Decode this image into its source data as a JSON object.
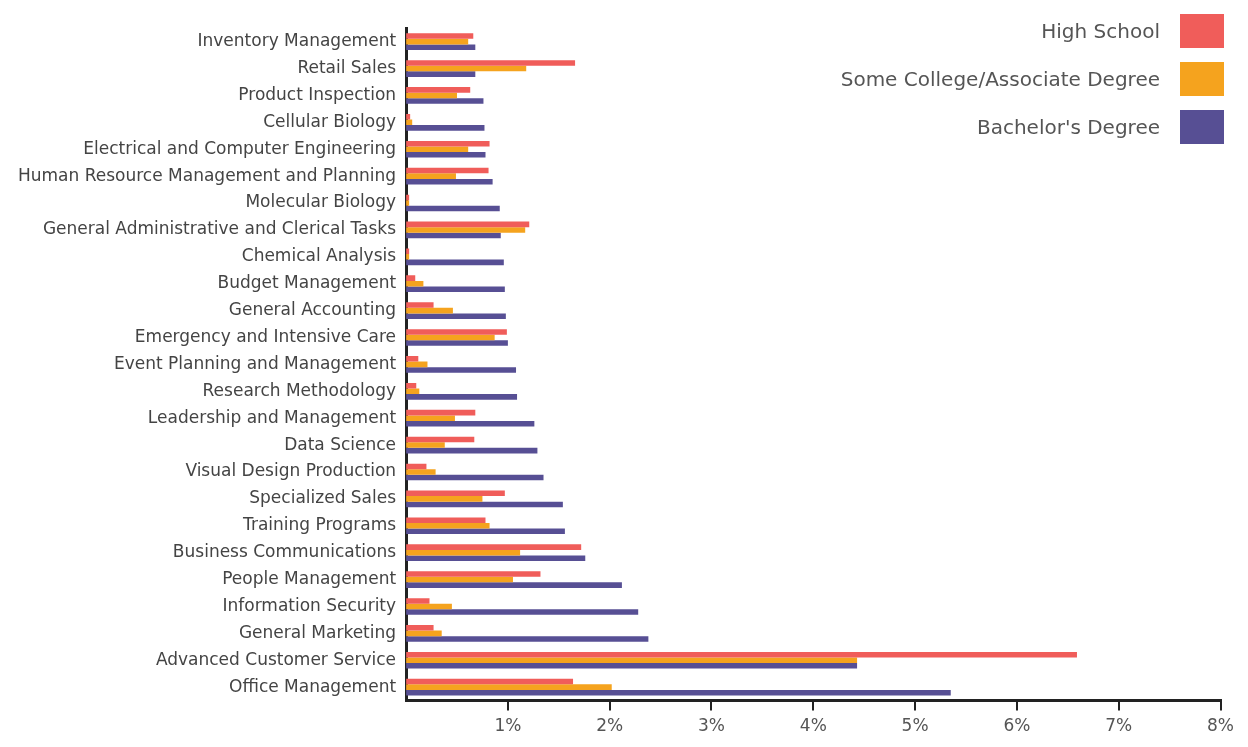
{
  "chart_data": {
    "type": "bar",
    "orientation": "horizontal",
    "categories": [
      "Inventory Management",
      "Retail Sales",
      "Product Inspection",
      "Cellular Biology",
      "Electrical and Computer Engineering",
      "Human Resource Management and Planning",
      "Molecular Biology",
      "General Administrative and Clerical Tasks",
      "Chemical Analysis",
      "Budget Management",
      "General Accounting",
      "Emergency and Intensive Care",
      "Event Planning and Management",
      "Research Methodology",
      "Leadership and Management",
      "Data Science",
      "Visual Design Production",
      "Specialized Sales",
      "Training Programs",
      "Business Communications",
      "People Management",
      "Information Security",
      "General Marketing",
      "Advanced Customer Service",
      "Office Management"
    ],
    "series": [
      {
        "name": "High School",
        "color": "#f05d5a",
        "values": [
          0.66,
          1.66,
          0.63,
          0.04,
          0.82,
          0.81,
          0.03,
          1.21,
          0.03,
          0.09,
          0.27,
          0.99,
          0.12,
          0.1,
          0.68,
          0.67,
          0.2,
          0.97,
          0.78,
          1.72,
          1.32,
          0.23,
          0.27,
          6.59,
          1.64
        ]
      },
      {
        "name": "Some College/Associate Degree",
        "color": "#f5a31e",
        "values": [
          0.61,
          1.18,
          0.5,
          0.06,
          0.61,
          0.49,
          0.03,
          1.17,
          0.03,
          0.17,
          0.46,
          0.87,
          0.21,
          0.13,
          0.48,
          0.38,
          0.29,
          0.75,
          0.82,
          1.12,
          1.05,
          0.45,
          0.35,
          4.43,
          2.02
        ]
      },
      {
        "name": "Bachelor's Degree",
        "color": "#574f94",
        "values": [
          0.68,
          0.68,
          0.76,
          0.77,
          0.78,
          0.85,
          0.92,
          0.93,
          0.96,
          0.97,
          0.98,
          1.0,
          1.08,
          1.09,
          1.26,
          1.29,
          1.35,
          1.54,
          1.56,
          1.76,
          2.12,
          2.28,
          2.38,
          4.43,
          5.35
        ]
      }
    ],
    "xlim": [
      0,
      8
    ],
    "xticks": [
      {
        "value": 1,
        "label": "1%"
      },
      {
        "value": 2,
        "label": "2%"
      },
      {
        "value": 3,
        "label": "3%"
      },
      {
        "value": 4,
        "label": "4%"
      },
      {
        "value": 5,
        "label": "5%"
      },
      {
        "value": 6,
        "label": "6%"
      },
      {
        "value": 7,
        "label": "7%"
      },
      {
        "value": 8,
        "label": "8%"
      }
    ],
    "grid": false,
    "legend": "top right"
  }
}
